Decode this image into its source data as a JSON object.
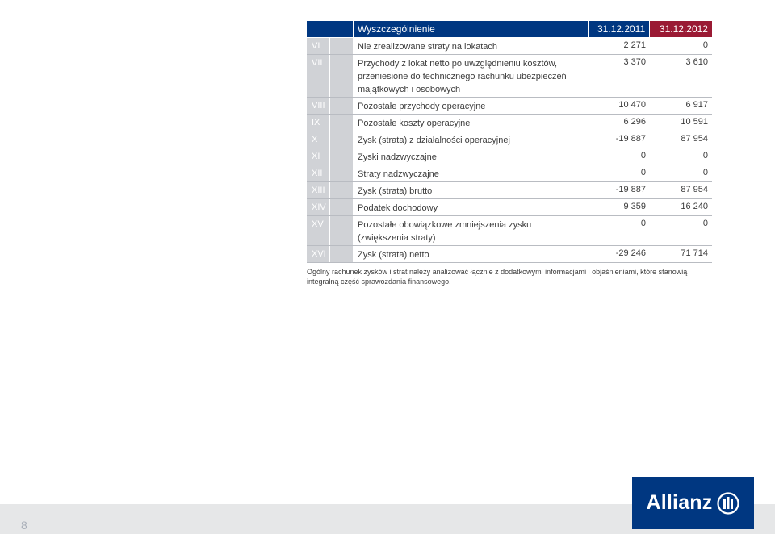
{
  "table": {
    "header": {
      "label": "Wyszczególnienie",
      "year1": "31.12.2011",
      "year2": "31.12.2012"
    },
    "rows": [
      {
        "num": "VI",
        "label": "Nie zrealizowane straty na lokatach",
        "y1": "2 271",
        "y2": "0",
        "size": "single"
      },
      {
        "num": "VII",
        "label": "Przychody z lokat netto po uwzględnieniu kosztów, przeniesione do technicznego rachunku ubezpieczeń majątkowych i osobowych",
        "y1": "3 370",
        "y2": "3 610",
        "size": "triple"
      },
      {
        "num": "VIII",
        "label": "Pozostałe przychody operacyjne",
        "y1": "10 470",
        "y2": "6 917",
        "size": "single"
      },
      {
        "num": "IX",
        "label": "Pozostałe koszty operacyjne",
        "y1": "6 296",
        "y2": "10 591",
        "size": "single"
      },
      {
        "num": "X",
        "label": "Zysk (strata) z działalności operacyjnej",
        "y1": "-19 887",
        "y2": "87 954",
        "size": "single"
      },
      {
        "num": "XI",
        "label": "Zyski nadzwyczajne",
        "y1": "0",
        "y2": "0",
        "size": "single"
      },
      {
        "num": "XII",
        "label": "Straty nadzwyczajne",
        "y1": "0",
        "y2": "0",
        "size": "single"
      },
      {
        "num": "XIII",
        "label": "Zysk (strata) brutto",
        "y1": "-19 887",
        "y2": "87 954",
        "size": "single"
      },
      {
        "num": "XIV",
        "label": "Podatek dochodowy",
        "y1": "9 359",
        "y2": "16 240",
        "size": "single"
      },
      {
        "num": "XV",
        "label": "Pozostałe obowiązkowe zmniejszenia zysku (zwiększenia straty)",
        "y1": "0",
        "y2": "0",
        "size": "double"
      },
      {
        "num": "XVI",
        "label": "Zysk (strata) netto",
        "y1": "-29 246",
        "y2": "71 714",
        "size": "single"
      }
    ]
  },
  "note": "Ogólny rachunek zysków i strat należy analizować łącznie z dodatkowymi informacjami i objaśnieniami, które stanowią integralną część sprawozdania finansowego.",
  "footer": {
    "page_number": "8",
    "logo_text": "Allianz"
  },
  "colors": {
    "brand_blue": "#003781",
    "accent_red": "#9a1a34",
    "row_stub": "#d0d2d6"
  }
}
